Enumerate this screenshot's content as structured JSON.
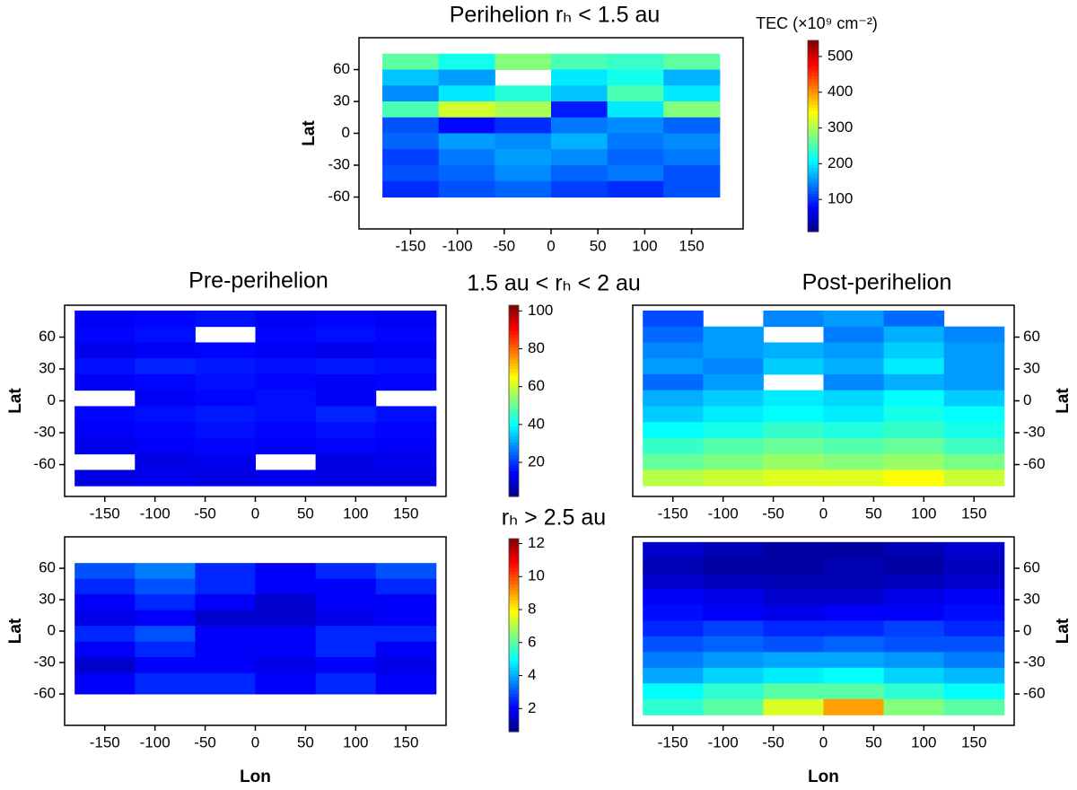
{
  "chart_data": [
    {
      "type": "heatmap",
      "title": "Perihelion rₕ < 1.5 au",
      "ylabel": "Lat",
      "xlim": [
        -205,
        205
      ],
      "ylim": [
        -90,
        90
      ],
      "xticks": [
        -150,
        -100,
        -50,
        0,
        50,
        100,
        150
      ],
      "yticks": [
        60,
        30,
        0,
        -30,
        -60
      ],
      "x": [
        -180,
        -120,
        -60,
        0,
        60,
        120,
        180
      ],
      "y": [
        75,
        60,
        45,
        30,
        15,
        0,
        -15,
        -30,
        -45,
        -60
      ],
      "z": [
        [
          260,
          220,
          280,
          250,
          240,
          260
        ],
        [
          180,
          160,
          null,
          200,
          220,
          170
        ],
        [
          150,
          200,
          230,
          180,
          250,
          200
        ],
        [
          250,
          320,
          300,
          90,
          200,
          280
        ],
        [
          120,
          80,
          100,
          140,
          150,
          130
        ],
        [
          130,
          160,
          150,
          170,
          140,
          150
        ],
        [
          110,
          140,
          160,
          150,
          130,
          140
        ],
        [
          120,
          130,
          150,
          130,
          140,
          120
        ],
        [
          100,
          120,
          130,
          110,
          100,
          120
        ]
      ],
      "zlim": [
        10,
        545
      ],
      "colorbar": {
        "label": "TEC (×10⁹ cm⁻²)",
        "ticks": [
          100,
          200,
          300,
          400,
          500
        ]
      }
    },
    {
      "type": "heatmap",
      "title": "Pre-perihelion",
      "ylabel": "Lat",
      "xlim": [
        -190,
        190
      ],
      "ylim": [
        -90,
        90
      ],
      "xticks": [
        -150,
        -100,
        -50,
        0,
        50,
        100,
        150
      ],
      "yticks": [
        60,
        30,
        0,
        -30,
        -60
      ],
      "x": [
        -180,
        -120,
        -60,
        0,
        60,
        120,
        180
      ],
      "y": [
        85,
        70,
        55,
        40,
        25,
        10,
        -5,
        -20,
        -35,
        -50,
        -65,
        -80
      ],
      "z": [
        [
          14,
          15,
          16,
          14,
          15,
          14
        ],
        [
          15,
          16,
          null,
          15,
          16,
          15
        ],
        [
          13,
          14,
          15,
          14,
          13,
          14
        ],
        [
          16,
          18,
          17,
          16,
          17,
          16
        ],
        [
          14,
          15,
          16,
          15,
          14,
          15
        ],
        [
          null,
          14,
          15,
          16,
          14,
          null
        ],
        [
          15,
          16,
          17,
          16,
          18,
          16
        ],
        [
          14,
          15,
          16,
          15,
          16,
          15
        ],
        [
          13,
          14,
          15,
          14,
          15,
          14
        ],
        [
          null,
          12,
          13,
          null,
          12,
          13
        ],
        [
          12,
          13,
          12,
          13,
          12,
          12
        ]
      ],
      "zlim": [
        2,
        103
      ],
      "colorbar": {
        "title": "1.5 au < rₕ < 2 au",
        "ticks": [
          20,
          40,
          60,
          80,
          100
        ]
      }
    },
    {
      "type": "heatmap",
      "title": "Post-perihelion",
      "ylabel": "Lat",
      "yaxis_side": "right",
      "xlim": [
        -190,
        190
      ],
      "ylim": [
        -90,
        90
      ],
      "xticks": [
        -150,
        -100,
        -50,
        0,
        50,
        100,
        150
      ],
      "yticks": [
        60,
        30,
        0,
        -30,
        -60
      ],
      "x": [
        -180,
        -120,
        -60,
        0,
        60,
        120,
        180
      ],
      "y": [
        85,
        70,
        55,
        40,
        25,
        10,
        -5,
        -20,
        -35,
        -50,
        -65,
        -80
      ],
      "z": [
        [
          22,
          null,
          28,
          30,
          25,
          null
        ],
        [
          25,
          30,
          null,
          27,
          32,
          28
        ],
        [
          28,
          30,
          32,
          30,
          35,
          30
        ],
        [
          30,
          28,
          35,
          32,
          38,
          30
        ],
        [
          25,
          30,
          null,
          28,
          32,
          30
        ],
        [
          32,
          35,
          38,
          36,
          40,
          35
        ],
        [
          35,
          38,
          40,
          38,
          42,
          40
        ],
        [
          40,
          42,
          45,
          43,
          45,
          42
        ],
        [
          45,
          48,
          50,
          48,
          50,
          46
        ],
        [
          50,
          52,
          55,
          53,
          55,
          52
        ],
        [
          58,
          60,
          62,
          62,
          65,
          60
        ]
      ],
      "zlim": [
        2,
        103
      ]
    },
    {
      "type": "heatmap",
      "xlabel": "Lon",
      "ylabel": "Lat",
      "xlim": [
        -190,
        190
      ],
      "ylim": [
        -90,
        90
      ],
      "xticks": [
        -150,
        -100,
        -50,
        0,
        50,
        100,
        150
      ],
      "yticks": [
        60,
        30,
        0,
        -30,
        -60
      ],
      "x": [
        -180,
        -120,
        -60,
        0,
        60,
        120,
        180
      ],
      "y": [
        65,
        50,
        35,
        20,
        5,
        -10,
        -25,
        -40,
        -60
      ],
      "z": [
        [
          3,
          3.5,
          2.5,
          2,
          2.5,
          3
        ],
        [
          2.5,
          3,
          2.5,
          2,
          2,
          2.5
        ],
        [
          2,
          2.5,
          2,
          1.5,
          2,
          2
        ],
        [
          1.8,
          2,
          1.5,
          1.5,
          1.8,
          2
        ],
        [
          2.5,
          3,
          2,
          2,
          2.5,
          2.5
        ],
        [
          2,
          2.5,
          2,
          2,
          2.5,
          2
        ],
        [
          1.5,
          2,
          2,
          1.8,
          2,
          1.8
        ],
        [
          2,
          2.5,
          2.5,
          2,
          2.5,
          2
        ]
      ],
      "zlim": [
        0.6,
        12.3
      ],
      "colorbar": {
        "title": "rₕ > 2.5 au",
        "ticks": [
          2,
          4,
          6,
          8,
          10,
          12
        ]
      }
    },
    {
      "type": "heatmap",
      "xlabel": "Lon",
      "ylabel": "Lat",
      "yaxis_side": "right",
      "xlim": [
        -190,
        190
      ],
      "ylim": [
        -90,
        90
      ],
      "xticks": [
        -150,
        -100,
        -50,
        0,
        50,
        100,
        150
      ],
      "yticks": [
        60,
        30,
        0,
        -30,
        -60
      ],
      "x": [
        -180,
        -120,
        -60,
        0,
        60,
        120,
        180
      ],
      "y": [
        85,
        70,
        55,
        40,
        25,
        10,
        -5,
        -20,
        -35,
        -50,
        -65,
        -80
      ],
      "z": [
        [
          1.5,
          1.2,
          1,
          1,
          1.2,
          1.5
        ],
        [
          1.2,
          1,
          1,
          1.2,
          1,
          1.3
        ],
        [
          1.5,
          1.3,
          1.2,
          1.2,
          1.3,
          1.5
        ],
        [
          2,
          1.8,
          1.5,
          1.5,
          1.8,
          2
        ],
        [
          2.2,
          2,
          1.8,
          2,
          2,
          2.2
        ],
        [
          2.5,
          2.8,
          2.5,
          2.5,
          2.8,
          2.5
        ],
        [
          3,
          3.2,
          3,
          3.2,
          3,
          3
        ],
        [
          3.5,
          3.8,
          4,
          4,
          3.8,
          3.5
        ],
        [
          4,
          4.5,
          4.8,
          5,
          4.5,
          4.2
        ],
        [
          5,
          5.5,
          6,
          6,
          5.5,
          5
        ],
        [
          5.5,
          6,
          7.5,
          9,
          6.5,
          6
        ]
      ],
      "zlim": [
        0.6,
        12.3
      ]
    }
  ]
}
